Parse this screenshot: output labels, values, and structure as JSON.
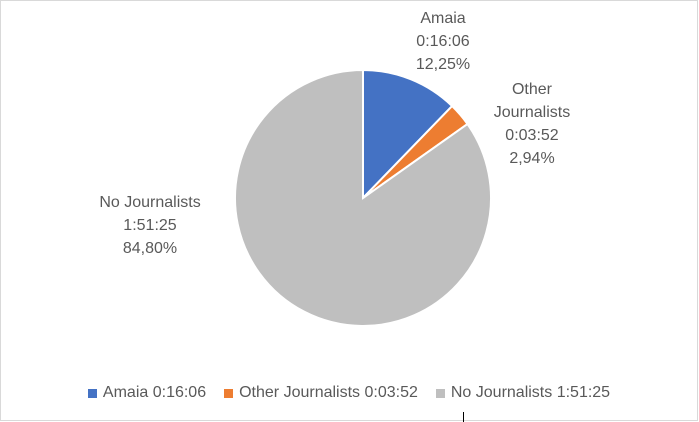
{
  "chart_data": {
    "type": "pie",
    "title": "",
    "slices": [
      {
        "name": "Amaia",
        "time": "0:16:06",
        "percent_label": "12,25%",
        "value": 12.25,
        "color": "#4472c4",
        "legend": "Amaia 0:16:06"
      },
      {
        "name": "Other Journalists",
        "time": "0:03:52",
        "percent_label": "2,94%",
        "value": 2.94,
        "color": "#ed7d31",
        "legend": "Other Journalists 0:03:52"
      },
      {
        "name": "No Journalists",
        "time": "1:51:25",
        "percent_label": "84,80%",
        "value": 84.8,
        "color": "#bfbfbf",
        "legend": "No Journalists 1:51:25"
      }
    ],
    "legend_position": "bottom",
    "data_labels": [
      [
        "Amaia",
        "0:16:06",
        "12,25%"
      ],
      [
        "Other",
        "Journalists",
        "0:03:52",
        "2,94%"
      ],
      [
        "No Journalists",
        "1:51:25",
        "84,80%"
      ]
    ]
  }
}
